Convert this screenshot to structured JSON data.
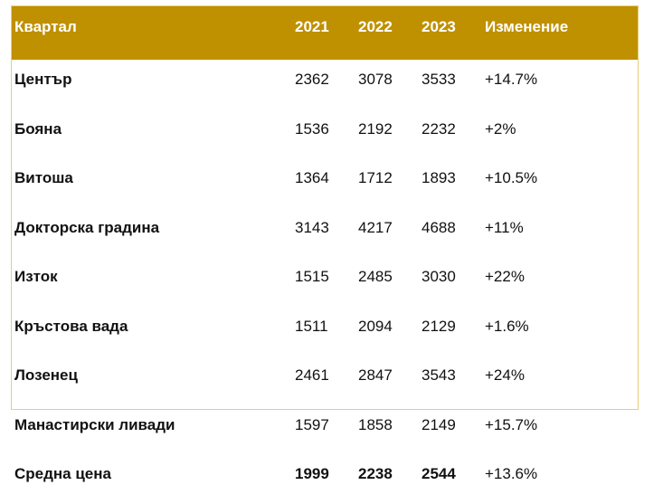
{
  "table": {
    "columns": [
      "Квартал",
      "2021",
      "2022",
      "2023",
      "Изменение"
    ],
    "rows": [
      [
        "Център",
        "2362",
        "3078",
        "3533",
        "+14.7%"
      ],
      [
        "Бояна",
        "1536",
        "2192",
        "2232",
        "+2%"
      ],
      [
        "Витоша",
        "1364",
        "1712",
        "1893",
        "+10.5%"
      ],
      [
        "Докторска градина",
        "3143",
        "4217",
        "4688",
        "+11%"
      ],
      [
        "Изток",
        "1515",
        "2485",
        "3030",
        "+22%"
      ],
      [
        "Кръстова вада",
        "1511",
        "2094",
        "2129",
        "+1.6%"
      ],
      [
        "Лозенец",
        "2461",
        "2847",
        "3543",
        "+24%"
      ],
      [
        "Манастирски ливади",
        "1597",
        "1858",
        "2149",
        "+15.7%"
      ],
      [
        "Средна цена",
        "1999",
        "2238",
        "2544",
        "+13.6%"
      ]
    ]
  }
}
